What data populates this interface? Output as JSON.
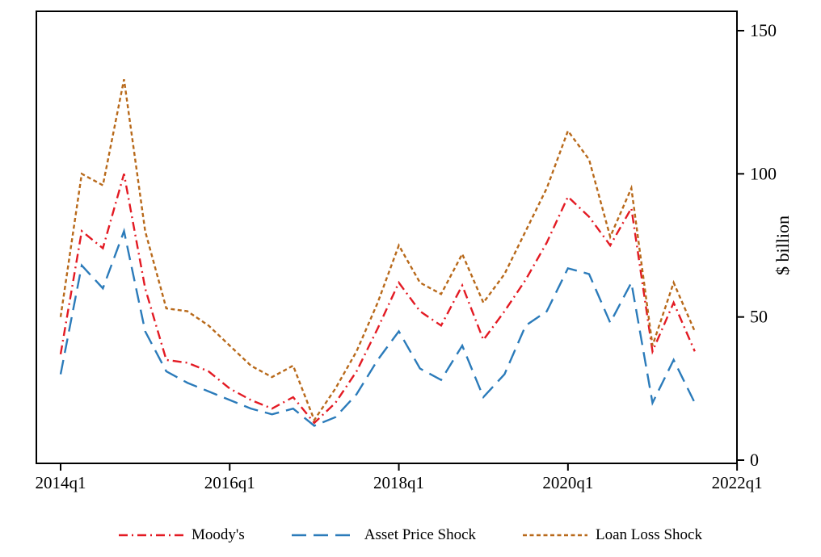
{
  "chart_data": {
    "type": "line",
    "title": "",
    "xlabel": "",
    "ylabel": "$ billion",
    "ylim": [
      0,
      150
    ],
    "yticks": [
      0,
      50,
      100,
      150
    ],
    "xticks": [
      "2014q1",
      "2016q1",
      "2018q1",
      "2020q1",
      "2022q1"
    ],
    "grid": false,
    "legend_position": "bottom",
    "x": [
      "2014q1",
      "2014q2",
      "2014q3",
      "2014q4",
      "2015q1",
      "2015q2",
      "2015q3",
      "2015q4",
      "2016q1",
      "2016q2",
      "2016q3",
      "2016q4",
      "2017q1",
      "2017q2",
      "2017q3",
      "2017q4",
      "2018q1",
      "2018q2",
      "2018q3",
      "2018q4",
      "2019q1",
      "2019q2",
      "2019q3",
      "2019q4",
      "2020q1",
      "2020q2",
      "2020q3",
      "2020q4",
      "2021q1",
      "2021q2",
      "2021q3"
    ],
    "series": [
      {
        "name": "Moody's",
        "color": "#e31a23",
        "dash": "dash-dot",
        "values": [
          37,
          80,
          74,
          100,
          60,
          35,
          34,
          31,
          25,
          21,
          18,
          22,
          13,
          20,
          31,
          46,
          62,
          52,
          47,
          61,
          42,
          52,
          63,
          76,
          92,
          85,
          75,
          88,
          38,
          55,
          38
        ]
      },
      {
        "name": "Asset Price Shock",
        "color": "#2b7bba",
        "dash": "long-dash",
        "values": [
          30,
          68,
          60,
          80,
          45,
          31,
          27,
          24,
          21,
          18,
          16,
          18,
          12,
          15,
          23,
          35,
          45,
          32,
          28,
          40,
          22,
          30,
          47,
          52,
          67,
          65,
          48,
          62,
          20,
          35,
          20
        ]
      },
      {
        "name": "Loan Loss Shock",
        "color": "#b8691a",
        "dash": "short-dash",
        "values": [
          50,
          100,
          96,
          133,
          80,
          53,
          52,
          47,
          40,
          33,
          29,
          33,
          14,
          25,
          38,
          55,
          75,
          62,
          58,
          72,
          55,
          65,
          80,
          95,
          115,
          105,
          78,
          95,
          40,
          62,
          45
        ]
      }
    ]
  }
}
